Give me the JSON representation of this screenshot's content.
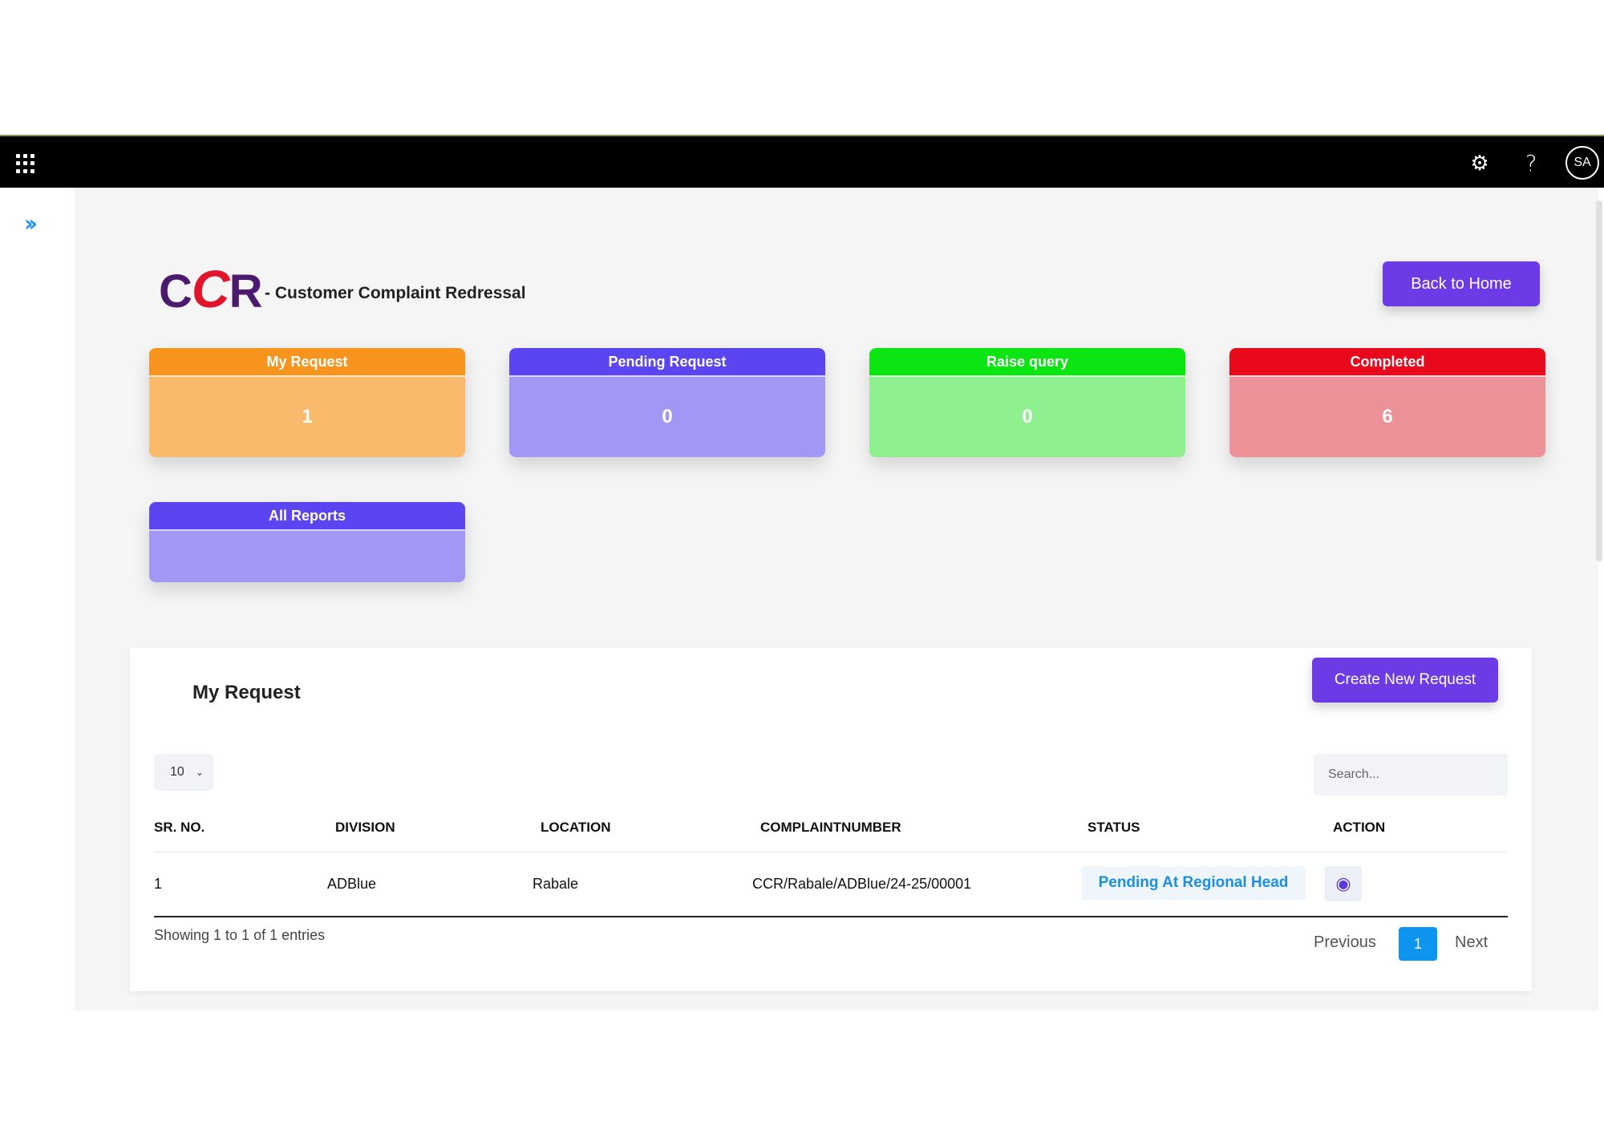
{
  "topbar": {
    "avatar_initials": "SA",
    "icons": [
      "app-launcher-icon",
      "gear-icon",
      "help-icon"
    ]
  },
  "header": {
    "logo": "CCR",
    "subtitle": "- Customer Complaint Redressal",
    "back_home_label": "Back to Home"
  },
  "cards": [
    {
      "title": "My Request",
      "value": "1",
      "head_color": "#f7941d",
      "body_color": "#f9bb6b"
    },
    {
      "title": "Pending Request",
      "value": "0",
      "head_color": "#5a45f0",
      "body_color": "#a397f5"
    },
    {
      "title": "Raise query",
      "value": "0",
      "head_color": "#0be612",
      "body_color": "#8ef08f"
    },
    {
      "title": "Completed",
      "value": "6",
      "head_color": "#e8091d",
      "body_color": "#ec9198"
    },
    {
      "title": "All Reports",
      "value": "",
      "head_color": "#5a45f0",
      "body_color": "#a397f5"
    }
  ],
  "panel": {
    "title": "My Request",
    "create_label": "Create New Request",
    "page_length": "10",
    "search_placeholder": "Search...",
    "columns": [
      "SR. NO.",
      "DIVISION",
      "LOCATION",
      "COMPLAINTNUMBER",
      "STATUS",
      "ACTION"
    ],
    "rows": [
      {
        "sr": "1",
        "division": "ADBlue",
        "location": "Rabale",
        "complaint_number": "CCR/Rabale/ADBlue/24-25/00001",
        "status": "Pending At Regional Head"
      }
    ],
    "info": "Showing 1 to 1 of 1 entries",
    "pagination": {
      "previous": "Previous",
      "current": "1",
      "next": "Next"
    }
  }
}
